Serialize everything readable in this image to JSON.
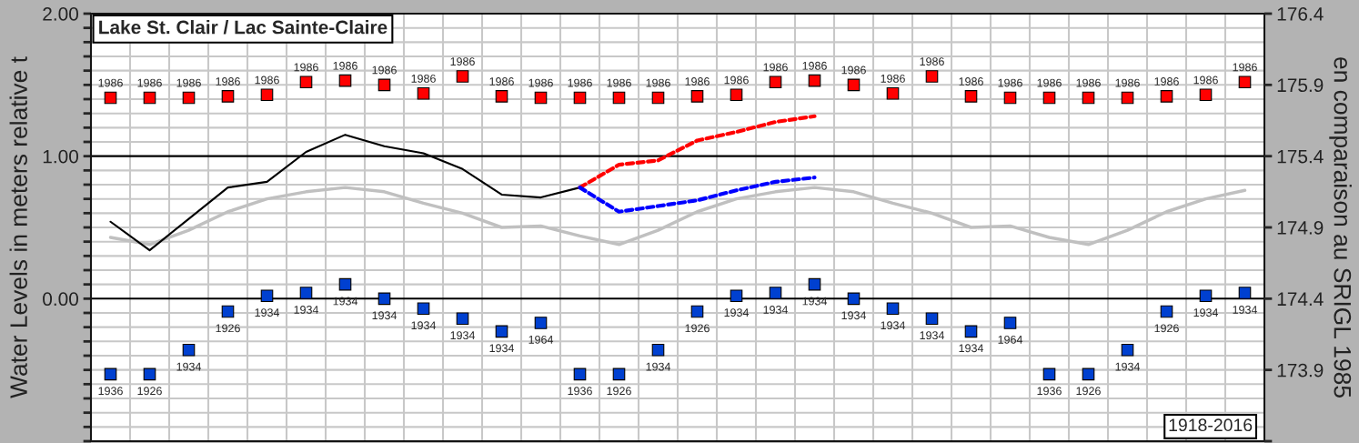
{
  "chart_data": {
    "type": "line",
    "title": "Lake St. Clair / Lac Sainte-Claire",
    "ylabel": "Water Levels in meters relative t",
    "y2label": "en comparaison au SRIGL 1985",
    "annotations": [
      "1918-2016",
      "1986",
      "1986",
      "1986",
      "1986",
      "1986",
      "1986",
      "1986",
      "1986",
      "1986",
      "1986",
      "1986",
      "1986",
      "1986",
      "1986",
      "1986",
      "1986",
      "1986",
      "1986",
      "1986",
      "1986",
      "1986",
      "1986",
      "1986",
      "1986",
      "1986",
      "1986",
      "1986",
      "1986",
      "1986",
      "1986",
      "1936",
      "1926",
      "1934",
      "1926",
      "1934",
      "1934",
      "1934",
      "1934",
      "1934",
      "1934",
      "1934",
      "1964",
      "1936",
      "1926",
      "1934",
      "1926",
      "1934",
      "1934",
      "1934",
      "1934",
      "1934",
      "1934",
      "1934",
      "1964",
      "1936",
      "1926",
      "1934",
      "1926",
      "1934",
      "1934"
    ],
    "categories": [
      null,
      null,
      null,
      null,
      null,
      null,
      null,
      null,
      null,
      null,
      null,
      null,
      null,
      null,
      null,
      null,
      null,
      null,
      null,
      null,
      null,
      null,
      null,
      null,
      null,
      null,
      null,
      null,
      null,
      null
    ],
    "series": [
      {
        "color": "#c0c0c0",
        "values": [
          0.43,
          0.38,
          0.48,
          0.61,
          0.7,
          0.75,
          0.78,
          0.75,
          0.67,
          0.6,
          0.5,
          0.51,
          0.44,
          0.38,
          0.48,
          0.61,
          0.7,
          0.75,
          0.78,
          0.75,
          0.67,
          0.6,
          0.5,
          0.51,
          0.43,
          0.38,
          0.48,
          0.61,
          0.7,
          0.76
        ]
      },
      {
        "color": "#000000",
        "values": [
          0.54,
          0.34,
          0.56,
          0.78,
          0.82,
          1.03,
          1.15,
          1.07,
          1.02,
          0.91,
          0.73,
          0.71,
          0.78,
          null,
          null,
          null,
          null,
          null,
          null,
          null,
          null,
          null,
          null,
          null,
          null,
          null,
          null,
          null,
          null,
          null
        ]
      },
      {
        "color": "#ff0000",
        "line_style": "dashed",
        "values": [
          null,
          null,
          null,
          null,
          null,
          null,
          null,
          null,
          null,
          null,
          null,
          null,
          0.78,
          0.94,
          0.97,
          1.11,
          1.17,
          1.24,
          1.28,
          null,
          null,
          null,
          null,
          null,
          null,
          null,
          null,
          null,
          null,
          null
        ]
      },
      {
        "color": "#0000ff",
        "line_style": "dashed",
        "values": [
          null,
          null,
          null,
          null,
          null,
          null,
          null,
          null,
          null,
          null,
          null,
          null,
          0.78,
          0.61,
          0.65,
          0.69,
          0.76,
          0.82,
          0.85,
          null,
          null,
          null,
          null,
          null,
          null,
          null,
          null,
          null,
          null,
          null
        ]
      },
      {
        "type": "scatter",
        "marker": "square",
        "color": "#ff0000",
        "values": [
          1.41,
          1.41,
          1.41,
          1.42,
          1.43,
          1.52,
          1.53,
          1.5,
          1.44,
          1.56,
          1.42,
          1.41,
          1.41,
          1.41,
          1.41,
          1.42,
          1.43,
          1.52,
          1.53,
          1.5,
          1.44,
          1.56,
          1.42,
          1.41,
          1.41,
          1.41,
          1.41,
          1.42,
          1.43,
          1.52
        ]
      },
      {
        "type": "scatter",
        "marker": "square",
        "color": "#0040d0",
        "values": [
          -0.53,
          -0.53,
          -0.36,
          -0.09,
          0.02,
          0.04,
          0.1,
          0.0,
          -0.07,
          -0.14,
          -0.23,
          -0.17,
          -0.53,
          -0.53,
          -0.36,
          -0.09,
          0.02,
          0.04,
          0.1,
          0.0,
          -0.07,
          -0.14,
          -0.23,
          -0.17,
          -0.53,
          -0.53,
          -0.36,
          -0.09,
          0.02,
          0.04
        ]
      }
    ],
    "ylim": [
      -1.0,
      2.0
    ],
    "yticks": [
      {
        "value": -1.0,
        "label": null
      },
      {
        "value": -0.9,
        "label": null
      },
      {
        "value": -0.8,
        "label": null
      },
      {
        "value": -0.7,
        "label": null
      },
      {
        "value": -0.6,
        "label": null
      },
      {
        "value": -0.5,
        "label": null
      },
      {
        "value": -0.4,
        "label": null
      },
      {
        "value": -0.3,
        "label": null
      },
      {
        "value": -0.2,
        "label": null
      },
      {
        "value": -0.1,
        "label": null
      },
      {
        "value": 0.0,
        "label": "0.00"
      },
      {
        "value": 0.1,
        "label": null
      },
      {
        "value": 0.2,
        "label": null
      },
      {
        "value": 0.3,
        "label": null
      },
      {
        "value": 0.4,
        "label": null
      },
      {
        "value": 0.5,
        "label": null
      },
      {
        "value": 0.6,
        "label": null
      },
      {
        "value": 0.7,
        "label": null
      },
      {
        "value": 0.8,
        "label": null
      },
      {
        "value": 0.9,
        "label": null
      },
      {
        "value": 1.0,
        "label": "1.00"
      },
      {
        "value": 1.1,
        "label": null
      },
      {
        "value": 1.2,
        "label": null
      },
      {
        "value": 1.3,
        "label": null
      },
      {
        "value": 1.4,
        "label": null
      },
      {
        "value": 1.5,
        "label": null
      },
      {
        "value": 1.6,
        "label": null
      },
      {
        "value": 1.7,
        "label": null
      },
      {
        "value": 1.8,
        "label": null
      },
      {
        "value": 1.9,
        "label": null
      },
      {
        "value": 2.0,
        "label": "2.00"
      }
    ],
    "y2lim": [
      173.4,
      176.4
    ],
    "y2ticks": [
      {
        "value": 173.4,
        "label": null
      },
      173.9,
      174.4,
      174.9,
      175.4,
      175.9,
      176.4
    ],
    "grid": true,
    "legend": false
  }
}
